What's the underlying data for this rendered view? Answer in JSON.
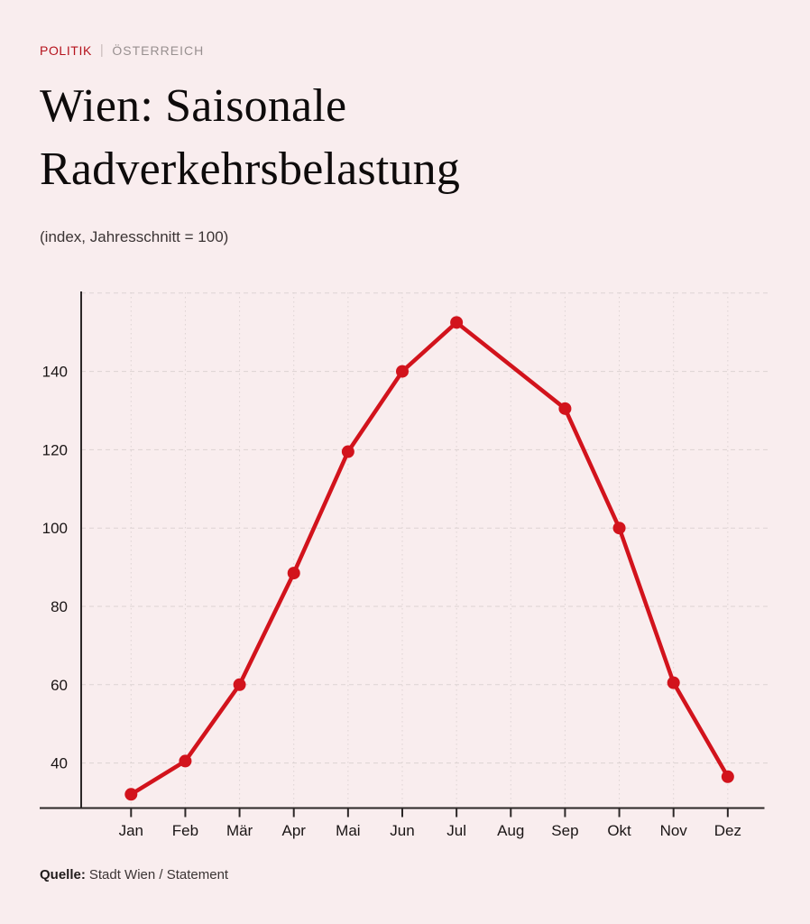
{
  "page": {
    "kicker": {
      "category": "POLITIK",
      "separator": "|",
      "region": "ÖSTERREICH"
    },
    "title_line1": "Wien: Saisonale",
    "title_line2": "Radverkehrsbelastung",
    "subtitle": "(index, Jahresschnitt = 100)",
    "source_label": "Quelle:",
    "source_text": "Stadt Wien / Statement"
  },
  "colors": {
    "background": "#f9edee",
    "accent_red": "#d2131c",
    "kicker_red": "#b5121c",
    "kicker_gray": "#989090",
    "axis": "#2c2727",
    "gridline": "#ddd3d3",
    "tick_label": "#1a1515",
    "title_text": "#0e0b0b",
    "muted_text": "#3b3434"
  },
  "chart_data": {
    "type": "line",
    "title": "Wien: Saisonale Radverkehrsbelastung",
    "subtitle": "(index, Jahresschnitt = 100)",
    "categories": [
      "Jan",
      "Feb",
      "Mär",
      "Apr",
      "Mai",
      "Jun",
      "Jul",
      "Aug",
      "Sep",
      "Okt",
      "Nov",
      "Dez"
    ],
    "values": [
      32,
      40.5,
      60,
      88.5,
      119.5,
      140,
      152.5,
      null,
      130.5,
      100,
      60.5,
      36.5
    ],
    "missing_note": "Aug has no marker; the line runs straight from Jul to Sep",
    "y_ticks": [
      40,
      60,
      80,
      100,
      120,
      140
    ],
    "y_gridlines": [
      40,
      60,
      80,
      100,
      120,
      140,
      160
    ],
    "ylim": [
      28.5,
      160.5
    ],
    "grid": true,
    "legend": "none",
    "line_color": "#d2131c",
    "marker": "circle"
  }
}
